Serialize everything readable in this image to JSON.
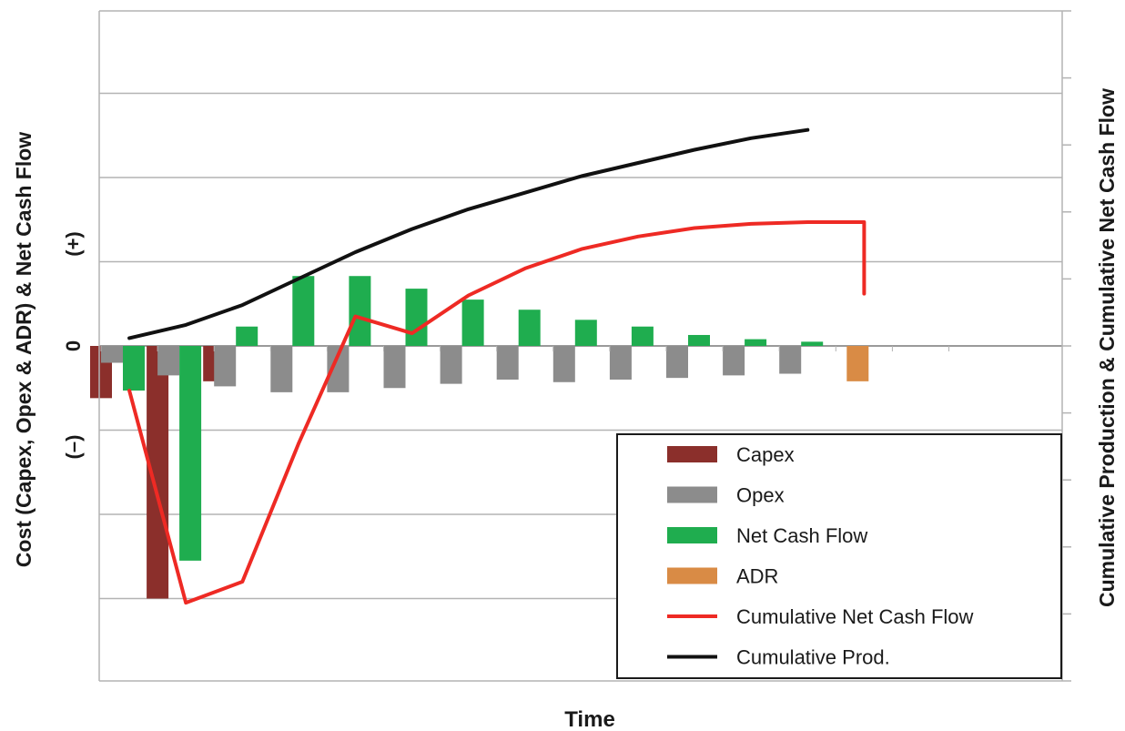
{
  "chart_data": {
    "type": "bar",
    "xlabel": "Time",
    "ylabel": "Cost (Capex, Opex & ADR) & Net Cash Flow",
    "y2label": "Cumulative Production & Cumulative Net Cash Flow",
    "y_tick_labels": {
      "positive": "(+)",
      "zero": "0",
      "negative": "(–)"
    },
    "ylim": [
      -4,
      4
    ],
    "y2lim": [
      0,
      10
    ],
    "gridlines": true,
    "legend_position": "bottom-right",
    "periods": 15,
    "series": [
      {
        "name": "Capex",
        "kind": "bar",
        "color": "#8b2f2b",
        "values": [
          -0.62,
          -3.0,
          -0.42,
          0,
          0,
          0,
          0,
          0,
          0,
          0,
          0,
          0,
          0,
          0,
          0
        ]
      },
      {
        "name": "Opex",
        "kind": "bar",
        "color": "#8c8c8c",
        "values": [
          -0.2,
          -0.35,
          -0.48,
          -0.55,
          -0.55,
          -0.5,
          -0.45,
          -0.4,
          -0.43,
          -0.4,
          -0.38,
          -0.35,
          -0.33,
          0,
          0
        ]
      },
      {
        "name": "Net Cash Flow",
        "kind": "bar",
        "color": "#1fad4f",
        "values": [
          -0.53,
          -2.55,
          0.23,
          0.83,
          0.83,
          0.68,
          0.55,
          0.43,
          0.31,
          0.23,
          0.13,
          0.08,
          0.05,
          0,
          0
        ]
      },
      {
        "name": "ADR",
        "kind": "bar",
        "color": "#d98b45",
        "values": [
          0,
          0,
          0,
          0,
          0,
          0,
          0,
          0,
          0,
          0,
          0,
          0,
          0,
          -0.42,
          0
        ]
      },
      {
        "name": "Cumulative Net Cash Flow",
        "kind": "line",
        "axis": "left",
        "color": "#ee2a24",
        "x": [
          0.5,
          1.5,
          2.5,
          3.5,
          4.5,
          5.5,
          6.5,
          7.5,
          8.5,
          9.5,
          10.5,
          11.5,
          12.5,
          13.5,
          13.5
        ],
        "values": [
          -0.53,
          -3.05,
          -2.8,
          -1.15,
          0.35,
          0.15,
          0.6,
          0.92,
          1.15,
          1.3,
          1.4,
          1.45,
          1.47,
          1.47,
          0.62
        ]
      },
      {
        "name": "Cumulative Prod.",
        "kind": "line",
        "axis": "right",
        "color": "#111111",
        "x": [
          0.5,
          1.5,
          2.5,
          3.5,
          4.5,
          5.5,
          6.5,
          7.5,
          8.5,
          9.5,
          10.5,
          11.5,
          12.5
        ],
        "values": [
          0.1,
          0.5,
          1.1,
          1.9,
          2.7,
          3.4,
          4.0,
          4.5,
          5.0,
          5.4,
          5.8,
          6.15,
          6.4
        ]
      }
    ]
  }
}
